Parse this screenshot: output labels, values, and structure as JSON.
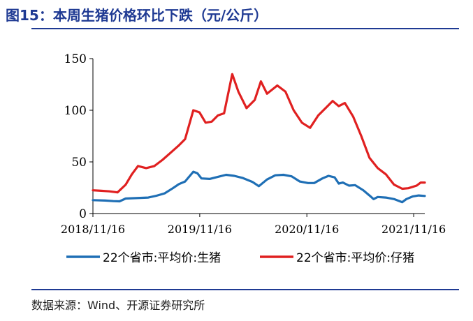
{
  "figure": {
    "title": "图15：本周生猪价格环比下跌（元/公斤）",
    "source": "数据来源：Wind、开源证券研究所"
  },
  "chart_data": {
    "type": "line",
    "x_ticks": [
      "2018/11/16",
      "2019/11/16",
      "2020/11/16",
      "2021/11/16"
    ],
    "y_ticks": [
      0,
      50,
      100,
      150
    ],
    "ylim": [
      0,
      150
    ],
    "xlim": [
      "2018/11/16",
      "2021/12/24"
    ],
    "grid": false,
    "legend_position": "bottom",
    "series": [
      {
        "name": "22个省市:平均价:生猪",
        "color": "#1f6fb5",
        "points": [
          [
            "2018/11/16",
            13.0
          ],
          [
            "2018/12/28",
            12.6
          ],
          [
            "2019/01/25",
            12.0
          ],
          [
            "2019/02/15",
            11.8
          ],
          [
            "2019/03/08",
            14.5
          ],
          [
            "2019/04/12",
            14.9
          ],
          [
            "2019/05/24",
            15.5
          ],
          [
            "2019/06/21",
            17.2
          ],
          [
            "2019/07/19",
            19.5
          ],
          [
            "2019/08/16",
            24.5
          ],
          [
            "2019/09/06",
            28.5
          ],
          [
            "2019/09/27",
            31.0
          ],
          [
            "2019/10/25",
            40.5
          ],
          [
            "2019/11/08",
            39.0
          ],
          [
            "2019/11/22",
            34.0
          ],
          [
            "2019/12/20",
            33.5
          ],
          [
            "2020/01/10",
            35.0
          ],
          [
            "2020/02/14",
            37.5
          ],
          [
            "2020/03/13",
            36.5
          ],
          [
            "2020/04/10",
            34.5
          ],
          [
            "2020/05/15",
            30.5
          ],
          [
            "2020/06/05",
            26.5
          ],
          [
            "2020/07/03",
            33.0
          ],
          [
            "2020/07/31",
            37.0
          ],
          [
            "2020/08/28",
            37.5
          ],
          [
            "2020/09/25",
            36.0
          ],
          [
            "2020/10/23",
            31.0
          ],
          [
            "2020/11/20",
            29.5
          ],
          [
            "2020/12/11",
            29.5
          ],
          [
            "2021/01/08",
            34.0
          ],
          [
            "2021/01/29",
            36.5
          ],
          [
            "2021/02/19",
            35.0
          ],
          [
            "2021/03/05",
            29.0
          ],
          [
            "2021/03/19",
            30.0
          ],
          [
            "2021/04/09",
            27.0
          ],
          [
            "2021/04/30",
            27.5
          ],
          [
            "2021/05/28",
            22.5
          ],
          [
            "2021/06/18",
            17.5
          ],
          [
            "2021/07/02",
            14.0
          ],
          [
            "2021/07/16",
            16.0
          ],
          [
            "2021/08/13",
            15.5
          ],
          [
            "2021/09/10",
            14.0
          ],
          [
            "2021/10/08",
            11.0
          ],
          [
            "2021/10/22",
            14.0
          ],
          [
            "2021/11/12",
            16.5
          ],
          [
            "2021/12/03",
            17.5
          ],
          [
            "2021/12/24",
            17.0
          ]
        ]
      },
      {
        "name": "22个省市:平均价:仔猪",
        "color": "#e02020",
        "points": [
          [
            "2018/11/16",
            22.5
          ],
          [
            "2018/12/14",
            22.0
          ],
          [
            "2019/01/11",
            21.5
          ],
          [
            "2019/02/08",
            20.5
          ],
          [
            "2019/03/08",
            28.0
          ],
          [
            "2019/03/29",
            38.0
          ],
          [
            "2019/04/19",
            46.0
          ],
          [
            "2019/05/17",
            44.0
          ],
          [
            "2019/06/14",
            46.0
          ],
          [
            "2019/07/12",
            52.0
          ],
          [
            "2019/08/09",
            59.0
          ],
          [
            "2019/09/06",
            66.0
          ],
          [
            "2019/09/27",
            72.0
          ],
          [
            "2019/10/25",
            100.0
          ],
          [
            "2019/11/15",
            98.0
          ],
          [
            "2019/12/06",
            88.0
          ],
          [
            "2019/12/27",
            89.0
          ],
          [
            "2020/01/17",
            95.0
          ],
          [
            "2020/02/07",
            97.0
          ],
          [
            "2020/03/06",
            135.0
          ],
          [
            "2020/03/27",
            118.0
          ],
          [
            "2020/04/24",
            102.0
          ],
          [
            "2020/05/22",
            110.0
          ],
          [
            "2020/06/12",
            128.0
          ],
          [
            "2020/07/03",
            116.0
          ],
          [
            "2020/08/07",
            124.0
          ],
          [
            "2020/09/04",
            118.0
          ],
          [
            "2020/10/02",
            100.0
          ],
          [
            "2020/10/30",
            88.0
          ],
          [
            "2020/11/27",
            83.0
          ],
          [
            "2020/12/25",
            95.0
          ],
          [
            "2021/01/22",
            103.0
          ],
          [
            "2021/02/12",
            109.0
          ],
          [
            "2021/03/05",
            104.0
          ],
          [
            "2021/03/26",
            107.0
          ],
          [
            "2021/04/23",
            94.0
          ],
          [
            "2021/05/21",
            75.0
          ],
          [
            "2021/06/18",
            54.0
          ],
          [
            "2021/07/16",
            44.0
          ],
          [
            "2021/08/13",
            38.0
          ],
          [
            "2021/09/10",
            28.0
          ],
          [
            "2021/10/08",
            24.0
          ],
          [
            "2021/10/29",
            24.5
          ],
          [
            "2021/11/26",
            27.0
          ],
          [
            "2021/12/10",
            30.0
          ],
          [
            "2021/12/24",
            30.0
          ]
        ]
      }
    ]
  }
}
